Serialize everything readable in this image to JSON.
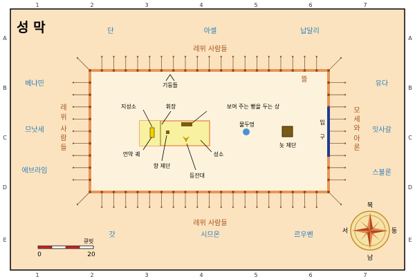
{
  "title": "성 막",
  "colors": {
    "background": "#fbe3c0",
    "border": "#000000",
    "courtyard_fill": "#fdf3dc",
    "court_line": "#e8955a",
    "tribe_blue": "#2d7fb8",
    "levite_brown": "#a9541c",
    "gate_blue": "#1f3a93",
    "tent_fill": "#f7f1a0",
    "holy_of_holies_fill": "#f0d200",
    "laver_blue": "#4a90d9",
    "altar_brown": "#7a5a14",
    "scale_red": "#c0272d"
  },
  "grid": {
    "columns": [
      "1",
      "2",
      "3",
      "4",
      "5",
      "6",
      "7"
    ],
    "rows": [
      "A",
      "B",
      "C",
      "D",
      "E"
    ]
  },
  "tribes": {
    "top_left": "단",
    "top_center": "아셀",
    "top_right": "납달리",
    "left_top": "베냐민",
    "left_middle": "므낫세",
    "left_bottom": "에브라임",
    "right_top": "유다",
    "right_middle": "잇사갈",
    "right_bottom": "스불론",
    "bottom_left": "갓",
    "bottom_center": "시므온",
    "bottom_right": "르우벤"
  },
  "levites": {
    "top": "레위 사람들",
    "bottom": "레위 사람들",
    "left": [
      "레",
      "위",
      "사",
      "람",
      "들"
    ],
    "right": [
      "모",
      "세",
      "와",
      "아",
      "론"
    ]
  },
  "labels": {
    "pillars": "기둥들",
    "curtains": "뜰",
    "holy_of_holies": "지성소",
    "veil": "휘장",
    "showbread_table": "보여 주는 빵을 두는 상",
    "laver": "물두멍",
    "ark": "언약 궤",
    "incense_altar": "향 제단",
    "lampstand": "등잔대",
    "holy_place": "성소",
    "burnt_altar": "놋 제단",
    "gate": [
      "입",
      "구"
    ]
  },
  "compass": {
    "north": "북",
    "south": "남",
    "east": "동",
    "west": "서"
  },
  "scale": {
    "unit": "큐빗",
    "min": "0",
    "max": "20"
  }
}
